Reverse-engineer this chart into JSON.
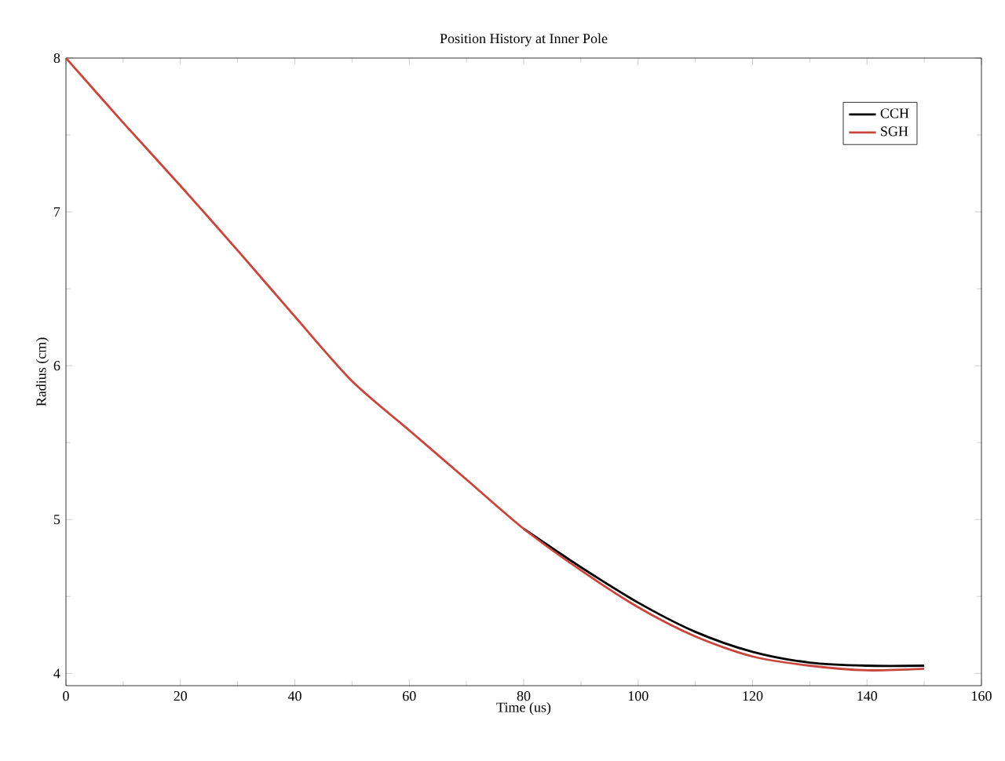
{
  "chart_data": {
    "type": "line",
    "title": "Position History at Inner Pole",
    "xlabel": "Time (us)",
    "ylabel": "Radius (cm)",
    "x": [
      0,
      10,
      20,
      30,
      40,
      50,
      60,
      70,
      80,
      90,
      100,
      110,
      120,
      130,
      140,
      150
    ],
    "series": [
      {
        "name": "CCH",
        "color": "#000000",
        "values": [
          null,
          null,
          null,
          null,
          null,
          null,
          null,
          null,
          4.94,
          4.69,
          4.46,
          4.27,
          4.14,
          4.07,
          4.05,
          4.05
        ]
      },
      {
        "name": "SGH",
        "color": "#c8463c",
        "values": [
          8.0,
          7.58,
          7.17,
          6.75,
          6.32,
          5.9,
          5.58,
          5.26,
          4.94,
          4.67,
          4.43,
          4.24,
          4.11,
          4.05,
          4.02,
          4.03
        ]
      }
    ],
    "xlim": [
      0,
      160
    ],
    "ylim": [
      3.92,
      8.0
    ],
    "xticks": [
      0,
      20,
      40,
      60,
      80,
      100,
      120,
      140,
      160
    ],
    "yticks": [
      4,
      5,
      6,
      7,
      8
    ],
    "legend": "top right",
    "grid": false,
    "line_style": "solid"
  }
}
